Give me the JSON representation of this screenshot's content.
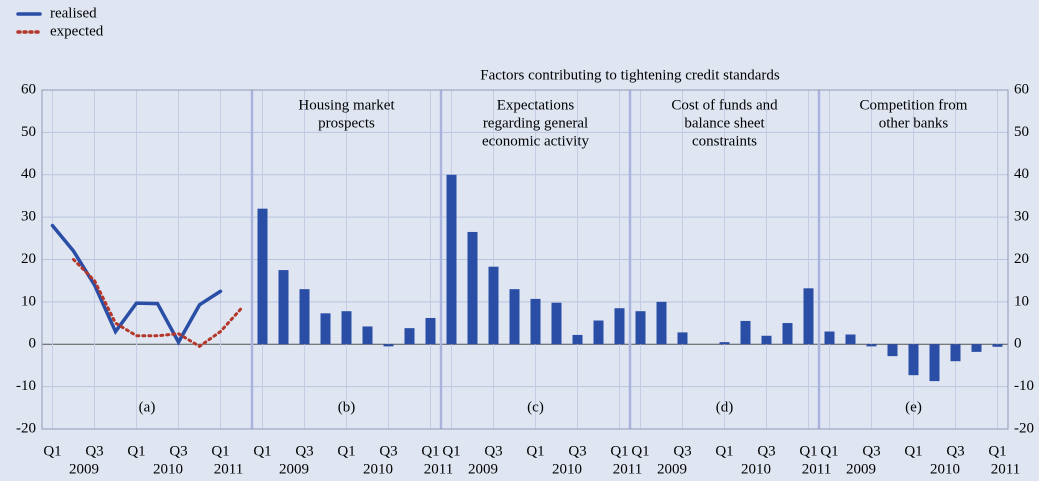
{
  "chart_data": {
    "type": "panels",
    "title": "Factors contributing to tightening credit standards",
    "ylim": [
      -20,
      60
    ],
    "yticks": [
      -20,
      -10,
      0,
      10,
      20,
      30,
      40,
      50,
      60
    ],
    "grid": true,
    "legend": "top-left",
    "panels": [
      {
        "type": "line",
        "label": "(a)",
        "categories": [
          "Q1",
          null,
          "Q3",
          null,
          "Q1",
          null,
          "Q3",
          null,
          "Q1",
          null
        ],
        "years": [
          "2009",
          "2010",
          "2011"
        ],
        "series": [
          {
            "name": "realised",
            "color": "#2a4da5",
            "style": "solid",
            "values": [
              28,
              22,
              14,
              3,
              9.7,
              9.6,
              0.5,
              9.3,
              12.5,
              null
            ]
          },
          {
            "name": "expected",
            "color": "#b5372a",
            "style": "dotted",
            "values": [
              null,
              20,
              15,
              5,
              2,
              2,
              2.5,
              -0.5,
              3,
              8.5
            ]
          }
        ]
      },
      {
        "type": "bar",
        "label": "(b)",
        "title": [
          "Housing market",
          "prospects"
        ],
        "color": "#2a4da5",
        "categories": [
          "Q1",
          null,
          "Q3",
          null,
          "Q1",
          null,
          "Q3",
          null,
          "Q1"
        ],
        "years": [
          "2009",
          "2010",
          "2011"
        ],
        "values": [
          32,
          17.5,
          13,
          7.3,
          7.8,
          4.2,
          -0.5,
          3.8,
          6.2
        ]
      },
      {
        "type": "bar",
        "label": "(c)",
        "title": [
          "Expectations",
          "regarding general",
          "economic activity"
        ],
        "color": "#2a4da5",
        "categories": [
          "Q1",
          null,
          "Q3",
          null,
          "Q1",
          null,
          "Q3",
          null,
          "Q1"
        ],
        "years": [
          "2009",
          "2010",
          "2011"
        ],
        "values": [
          40,
          26.5,
          18.3,
          13,
          10.7,
          9.8,
          2.2,
          5.6,
          8.5
        ]
      },
      {
        "type": "bar",
        "label": "(d)",
        "title": [
          "Cost of funds and",
          "balance sheet",
          "constraints"
        ],
        "color": "#2a4da5",
        "categories": [
          "Q1",
          null,
          "Q3",
          null,
          "Q1",
          null,
          "Q3",
          null,
          "Q1"
        ],
        "years": [
          "2009",
          "2010",
          "2011"
        ],
        "values": [
          7.8,
          10,
          2.8,
          0,
          0.5,
          5.5,
          2,
          5,
          13.2
        ]
      },
      {
        "type": "bar",
        "label": "(e)",
        "title": [
          "Competition from",
          "other banks"
        ],
        "color": "#2a4da5",
        "categories": [
          "Q1",
          null,
          "Q3",
          null,
          "Q1",
          null,
          "Q3",
          null,
          "Q1"
        ],
        "years": [
          "2009",
          "2010",
          "2011"
        ],
        "values": [
          3,
          2.3,
          -0.5,
          -2.8,
          -7.3,
          -8.7,
          -4,
          -1.8,
          -0.6
        ]
      }
    ]
  }
}
